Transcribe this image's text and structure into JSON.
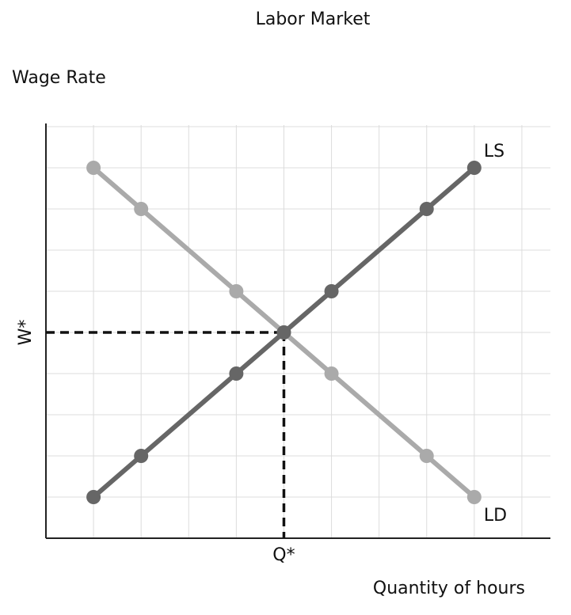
{
  "chart_data": {
    "type": "line",
    "title": "Labor Market",
    "ylabel": "Wage Rate",
    "xlabel": "Quantity of hours",
    "x": [
      1,
      2,
      4,
      5,
      6,
      8,
      9
    ],
    "series": [
      {
        "name": "LS",
        "color": "#666666",
        "values": [
          1,
          2,
          4,
          5,
          6,
          8,
          9
        ]
      },
      {
        "name": "LD",
        "color": "#aaaaaa",
        "values": [
          9,
          8,
          6,
          5,
          4,
          2,
          1
        ]
      }
    ],
    "xlim": [
      0,
      10.6
    ],
    "ylim": [
      0,
      10
    ],
    "xticks": [
      1,
      2,
      3,
      4,
      5,
      6,
      7,
      8,
      9,
      10
    ],
    "yticks": [
      1,
      2,
      3,
      4,
      5,
      6,
      7,
      8,
      9,
      10
    ],
    "grid": true,
    "tick_labels": false,
    "equilibrium": {
      "x": 5,
      "y": 5,
      "x_label": "Q*",
      "y_label": "W*"
    }
  }
}
